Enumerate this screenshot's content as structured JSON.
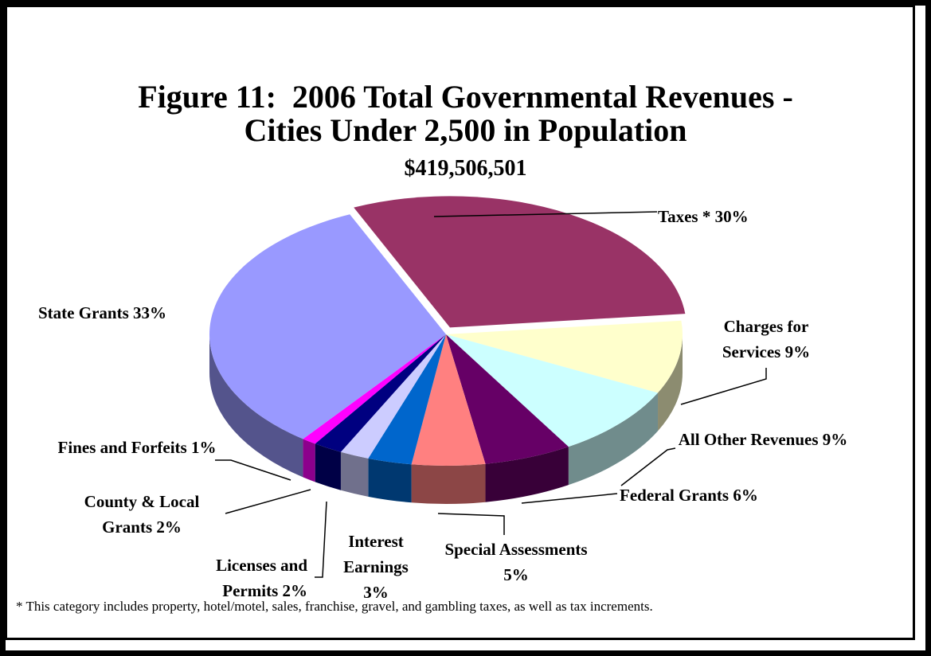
{
  "chart_data": {
    "type": "pie",
    "title": [
      "Figure 11:  2006 Total Governmental Revenues -",
      "Cities Under 2,500 in Population"
    ],
    "subtitle": "$419,506,501",
    "categories": [
      "Taxes *",
      "Charges for Services",
      "All Other Revenues",
      "Federal Grants",
      "Special Assessments",
      "Interest Earnings",
      "Licenses and Permits",
      "County & Local Grants",
      "Fines and Forfeits",
      "State Grants"
    ],
    "values": [
      30,
      9,
      9,
      6,
      5,
      3,
      2,
      2,
      1,
      33
    ],
    "value_labels": [
      "30%",
      "9%",
      "9%",
      "6%",
      "5%",
      "3%",
      "2%",
      "2%",
      "1%",
      "33%"
    ],
    "colors": [
      "#993366",
      "#ffffcc",
      "#ccffff",
      "#660066",
      "#ff8080",
      "#0066cc",
      "#ccccff",
      "#000080",
      "#ff00ff",
      "#9999ff"
    ],
    "footnote": "* This category includes property, hotel/motel, sales, franchise, gravel, and gambling taxes, as well as tax increments."
  }
}
